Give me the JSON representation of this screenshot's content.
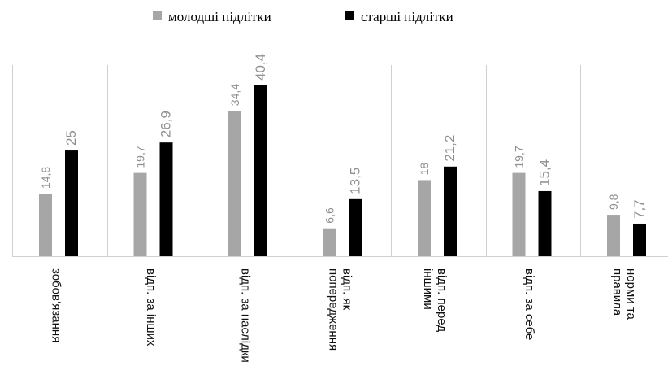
{
  "chart_data": {
    "type": "bar",
    "title": "",
    "xlabel": "",
    "ylabel": "",
    "ylim": [
      0,
      45
    ],
    "grid": "vertical separators",
    "legend_position": "top",
    "categories": [
      [
        "зобов’язання"
      ],
      [
        "відп. за інших"
      ],
      [
        "відп. за наслідки"
      ],
      [
        "відп. як",
        "попередження"
      ],
      [
        "відп. перед",
        "іншими"
      ],
      [
        "відп. за себе"
      ],
      [
        "норми та",
        "правила"
      ]
    ],
    "series": [
      {
        "name": "молодші підлітки",
        "color": "#a6a6a6",
        "values": [
          14.8,
          19.7,
          34.4,
          6.6,
          18,
          19.7,
          9.8
        ],
        "labels": [
          "14,8",
          "19,7",
          "34,4",
          "6,6",
          "18",
          "19,7",
          "9,8"
        ]
      },
      {
        "name": "старші підлітки",
        "color": "#000000",
        "values": [
          25,
          26.9,
          40.4,
          13.5,
          21.2,
          15.4,
          7.7
        ],
        "labels": [
          "25",
          "26,9",
          "40,4",
          "13,5",
          "21,2",
          "15,4",
          "7,7"
        ]
      }
    ]
  }
}
